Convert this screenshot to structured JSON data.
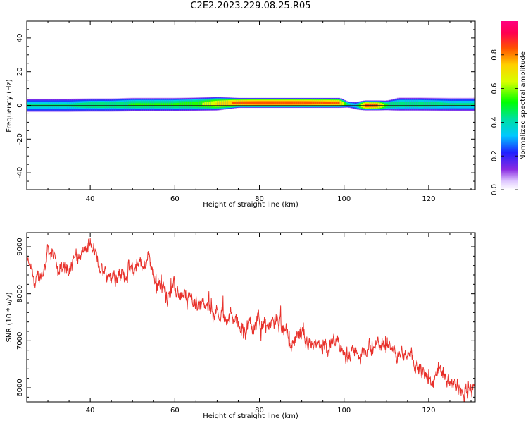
{
  "title": "C2E2.2023.229.08.25.R05",
  "chart_data": [
    {
      "type": "heatmap",
      "xlabel": "Height of straight line (km)",
      "ylabel": "Frequency (Hz)",
      "xlim": [
        25,
        131
      ],
      "ylim": [
        -50,
        50
      ],
      "xticks": [
        40,
        60,
        80,
        100,
        120
      ],
      "yticks": [
        -40,
        -20,
        0,
        20,
        40
      ],
      "colorbar": {
        "label": "Normalized spectral amplitude",
        "range": [
          0.0,
          1.0
        ],
        "ticks": [
          0.0,
          0.2,
          0.4,
          0.6,
          0.8
        ],
        "tick_labels": [
          "0.0",
          "0.2",
          "0.4",
          "0.6",
          "0.8"
        ]
      },
      "ridge": {
        "x": [
          25,
          30,
          35,
          40,
          45,
          50,
          55,
          60,
          65,
          70,
          75,
          80,
          85,
          90,
          95,
          99,
          101,
          103,
          105,
          108,
          110,
          113,
          118,
          125,
          131
        ],
        "center_hz": [
          0,
          0,
          0,
          0.2,
          0.2,
          0.5,
          0.5,
          0.5,
          0.7,
          1,
          1.5,
          1.5,
          1.5,
          1.5,
          1.5,
          1.5,
          0.5,
          -0.2,
          0,
          0,
          0,
          0.7,
          0.7,
          0.5,
          0.5
        ],
        "peak_amplitude": [
          0.45,
          0.45,
          0.45,
          0.5,
          0.5,
          0.55,
          0.55,
          0.55,
          0.6,
          0.75,
          0.88,
          0.9,
          0.9,
          0.9,
          0.88,
          0.85,
          0.45,
          0.4,
          0.9,
          0.88,
          0.55,
          0.5,
          0.5,
          0.45,
          0.45
        ],
        "halfwidth_hz": [
          3.5,
          3.5,
          3.5,
          3.5,
          3.5,
          3.5,
          3.5,
          3.5,
          3.5,
          3.5,
          2.5,
          2.5,
          2.5,
          2.5,
          2.5,
          2.5,
          1.5,
          2,
          2.5,
          2.5,
          2.5,
          3.5,
          3.5,
          3.5,
          3.5
        ]
      }
    },
    {
      "type": "line",
      "xlabel": "Height of straight line (km)",
      "ylabel": "SNR (10 * v/v)",
      "xlim": [
        25,
        131
      ],
      "ylim": [
        5700,
        9300
      ],
      "xticks": [
        40,
        60,
        80,
        100,
        120
      ],
      "yticks": [
        6000,
        7000,
        8000,
        9000
      ],
      "series": [
        {
          "color": "#e8302a",
          "x": [
            25,
            27,
            29,
            30,
            31,
            33,
            35,
            37,
            39,
            40,
            41,
            43,
            45,
            47,
            49,
            51,
            53,
            54,
            55,
            57,
            59,
            61,
            63,
            65,
            67,
            69,
            71,
            73,
            75,
            77,
            79,
            81,
            83,
            85,
            86,
            88,
            90,
            92,
            94,
            96,
            98,
            100,
            102,
            104,
            106,
            108,
            110,
            112,
            114,
            116,
            118,
            120,
            121,
            122,
            124,
            126,
            128,
            130,
            131
          ],
          "y": [
            8700,
            8200,
            8500,
            9000,
            8800,
            8500,
            8600,
            8800,
            8900,
            9100,
            8800,
            8500,
            8400,
            8400,
            8500,
            8500,
            8700,
            8800,
            8400,
            8100,
            8100,
            8000,
            7900,
            7800,
            7800,
            7700,
            7600,
            7500,
            7400,
            7300,
            7400,
            7300,
            7400,
            7400,
            7100,
            7000,
            7050,
            7000,
            6950,
            6800,
            6900,
            6700,
            6750,
            6700,
            6700,
            6950,
            7000,
            6800,
            6650,
            6600,
            6400,
            6200,
            6000,
            6300,
            6150,
            6100,
            5950,
            6000,
            6050
          ]
        }
      ]
    }
  ]
}
